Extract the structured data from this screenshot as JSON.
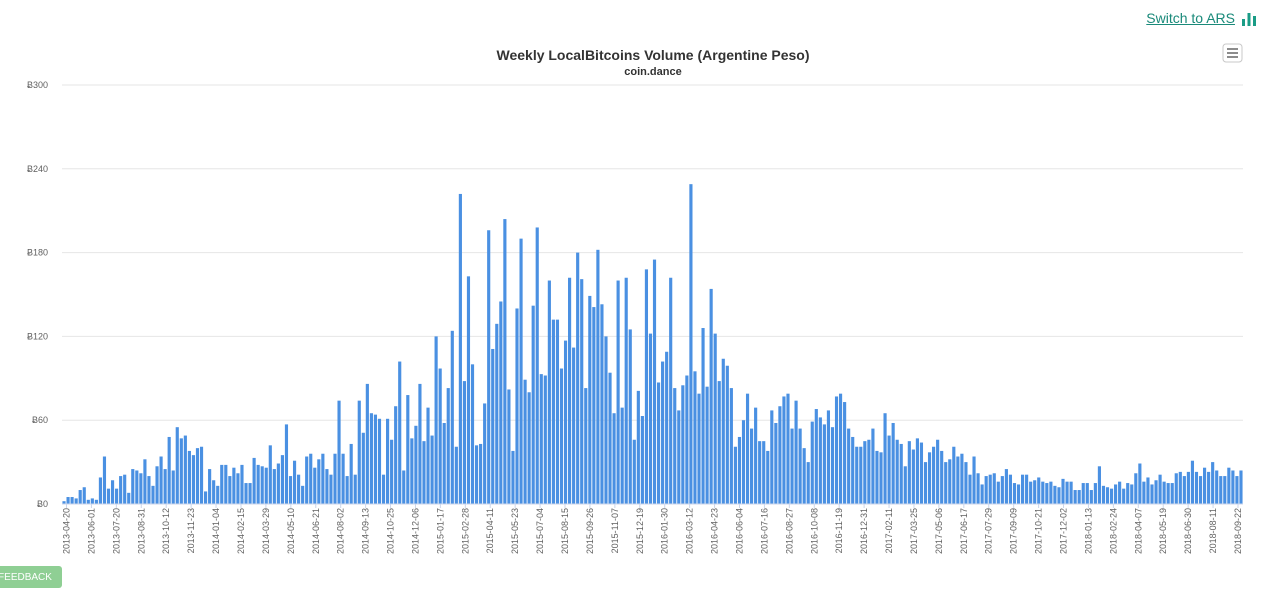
{
  "header": {
    "switch_label": "Switch to ARS",
    "switch_icon": "bar-chart-icon",
    "accent_color": "#1a9c86"
  },
  "feedback": {
    "label": "FEEDBACK"
  },
  "chart_data": {
    "type": "bar",
    "title": "Weekly LocalBitcoins Volume (Argentine Peso)",
    "subtitle": "coin.dance",
    "xlabel": "",
    "ylabel": "",
    "ylim": [
      0,
      300
    ],
    "yticks": [
      "Ƀ0",
      "Ƀ60",
      "Ƀ120",
      "Ƀ180",
      "Ƀ240",
      "Ƀ300"
    ],
    "grid": true,
    "bar_color": "#4a90e2",
    "x_tick_labels": [
      "2013-04-20",
      "2013-06-01",
      "2013-07-20",
      "2013-08-31",
      "2013-10-12",
      "2013-11-23",
      "2014-01-04",
      "2014-02-15",
      "2014-03-29",
      "2014-05-10",
      "2014-06-21",
      "2014-08-02",
      "2014-09-13",
      "2014-10-25",
      "2014-12-06",
      "2015-01-17",
      "2015-02-28",
      "2015-04-11",
      "2015-05-23",
      "2015-07-04",
      "2015-08-15",
      "2015-09-26",
      "2015-11-07",
      "2015-12-19",
      "2016-01-30",
      "2016-03-12",
      "2016-04-23",
      "2016-06-04",
      "2016-07-16",
      "2016-08-27",
      "2016-10-08",
      "2016-11-19",
      "2016-12-31",
      "2017-02-11",
      "2017-03-25",
      "2017-05-06",
      "2017-06-17",
      "2017-07-29",
      "2017-09-09",
      "2017-10-21",
      "2017-12-02",
      "2018-01-13",
      "2018-02-24",
      "2018-04-07",
      "2018-05-19",
      "2018-06-30",
      "2018-08-11",
      "2018-09-22"
    ],
    "values": [
      2,
      5,
      5,
      4,
      10,
      12,
      3,
      4,
      3,
      19,
      34,
      11,
      17,
      11,
      20,
      21,
      8,
      25,
      24,
      22,
      32,
      20,
      13,
      27,
      34,
      25,
      48,
      24,
      55,
      47,
      49,
      38,
      35,
      40,
      41,
      9,
      25,
      17,
      13,
      28,
      28,
      20,
      26,
      22,
      28,
      15,
      15,
      33,
      28,
      27,
      26,
      42,
      25,
      29,
      35,
      57,
      20,
      31,
      21,
      13,
      34,
      36,
      26,
      32,
      36,
      25,
      21,
      36,
      74,
      36,
      20,
      43,
      21,
      74,
      51,
      86,
      65,
      64,
      61,
      21,
      61,
      46,
      70,
      102,
      24,
      78,
      47,
      56,
      86,
      45,
      69,
      49,
      120,
      97,
      58,
      83,
      124,
      41,
      222,
      88,
      163,
      100,
      42,
      43,
      72,
      196,
      111,
      129,
      145,
      204,
      82,
      38,
      140,
      190,
      89,
      80,
      142,
      198,
      93,
      92,
      160,
      132,
      132,
      97,
      117,
      162,
      112,
      180,
      161,
      83,
      149,
      141,
      182,
      143,
      120,
      94,
      65,
      160,
      69,
      162,
      125,
      46,
      81,
      63,
      168,
      122,
      175,
      87,
      102,
      109,
      162,
      83,
      67,
      85,
      92,
      229,
      95,
      79,
      126,
      84,
      154,
      122,
      88,
      104,
      99,
      83,
      41,
      48,
      60,
      79,
      54,
      69,
      45,
      45,
      38,
      67,
      58,
      70,
      77,
      79,
      54,
      74,
      54,
      40,
      30,
      59,
      68,
      62,
      57,
      67,
      55,
      77,
      79,
      73,
      54,
      48,
      41,
      41,
      45,
      46,
      54,
      38,
      37,
      65,
      49,
      58,
      46,
      43,
      27,
      45,
      39,
      47,
      44,
      30,
      37,
      41,
      46,
      38,
      30,
      32,
      41,
      34,
      36,
      30,
      21,
      34,
      22,
      14,
      20,
      21,
      22,
      16,
      20,
      25,
      21,
      15,
      14,
      21,
      21,
      16,
      17,
      19,
      16,
      15,
      16,
      13,
      12,
      18,
      16,
      16,
      10,
      10,
      15,
      15,
      10,
      15,
      27,
      13,
      12,
      11,
      14,
      16,
      11,
      15,
      14,
      22,
      29,
      16,
      19,
      14,
      17,
      21,
      16,
      15,
      15,
      22,
      23,
      20,
      23,
      31,
      23,
      20,
      26,
      23,
      30,
      24,
      20,
      20,
      26,
      24,
      20,
      24
    ]
  }
}
